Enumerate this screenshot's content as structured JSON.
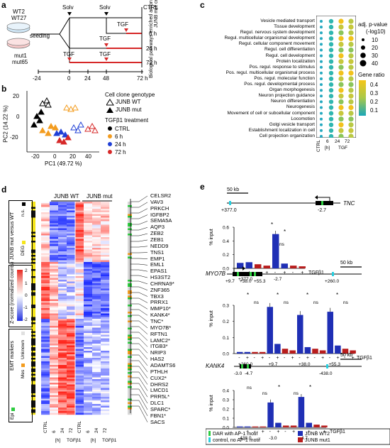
{
  "panels": {
    "a": "a",
    "b": "b",
    "c": "c",
    "d": "d",
    "e": "e"
  },
  "a": {
    "wt_labels": [
      "WT2",
      "WT27"
    ],
    "mut_labels": [
      "mut1",
      "mut65"
    ],
    "seeding": "seeding",
    "solv": "Solv",
    "tgf": "TGF",
    "conditions": [
      "CTRL",
      "6 h",
      "24 h",
      "72 h"
    ],
    "axis_ticks": [
      "-24",
      "0",
      "24",
      "48",
      "72 h"
    ]
  },
  "b": {
    "xlabel": "PC1 (49.72 %)",
    "ylabel": "PC2 (14.22 %)",
    "xticks": [
      "-20",
      "0",
      "20",
      "40"
    ],
    "yticks": [
      "20",
      "0",
      "-20"
    ],
    "legend_title1": "Cell clone genotype",
    "legend_wt": "JUNB WT",
    "legend_mut": "JUNB mut",
    "legend_title2": "TGFβ1 treatment",
    "treatments": [
      "CTRL",
      "6 h",
      "24 h",
      "72 h"
    ],
    "treatment_colors": [
      "#000000",
      "#f39c1f",
      "#1f3fd6",
      "#d62828"
    ]
  },
  "c": {
    "ylabel": "Biological pathways enriched among genes downregulated in JUNB mut cells",
    "pathways": [
      "Vesicle mediated transport",
      "Tissue development",
      "Regul. nervous system development",
      "Regul. multicellular organismal development",
      "Regul. cellular component movement",
      "Regul. cell differentiation",
      "Regul. cell development",
      "Protein localization",
      "Pos. regul. response to stimulus",
      "Pos. regul. multicellular organismal process",
      "Pos. regul. molecular function",
      "Pos. regul. developmental process",
      "Organ morphogenesis",
      "Neuron projection guidance",
      "Neuron differentiation",
      "Neurogenesis",
      "Movement of cell or subcellular component",
      "Locomotion",
      "Golgi vesicle transport",
      "Establishment localization in cell",
      "Cell projection organization"
    ],
    "columns": [
      "CTRL",
      "6",
      "24",
      "72"
    ],
    "xfooter_h": "[h]",
    "xfooter_tgf": "TGF",
    "size_title": "adj. p-value",
    "size_title2": "(-log10)",
    "size_legend": [
      "10",
      "20",
      "30",
      "40"
    ],
    "color_title": "Gene ratio",
    "color_legend": [
      "0.4",
      "0.3",
      "0.2",
      "0.1"
    ]
  },
  "d": {
    "header_wt": "JUNB WT",
    "header_mut": "JUNB mut",
    "side1_title": "JUNB mut versus WT",
    "side1_ns": "n.s.",
    "side1_deg": "DEG",
    "side2_title": "Z-score (normalized counts)",
    "side2_ticks": [
      "2",
      "1",
      "0",
      "-1",
      "-2"
    ],
    "side3_title": "EMT markers",
    "side3_mes": "Mes",
    "side3_unknown": "Unknown",
    "side3_epi": "Epi",
    "xlabels": [
      "CTRL",
      "6",
      "24",
      "72",
      "CTRL",
      "6",
      "24",
      "72"
    ],
    "xfooter_h": "[h]",
    "xfooter_tgf": "TGFβ1",
    "genes": [
      "CELSR2",
      "VAV3",
      "PRKCH",
      "IGFBP2",
      "SEMA5A",
      "AQP3",
      "ZEB2",
      "ZEB1",
      "NEDD9",
      "TNS1",
      "EMP1",
      "EML1",
      "EPAS1",
      "HS3ST2",
      "CHRNA9*",
      "ZNF365",
      "TBX3",
      "PRRX1",
      "MMP10*",
      "KANK4*",
      "TNC*",
      "MYO7B*",
      "RFTN1",
      "LAMC2*",
      "ITGB3*",
      "NRIP3",
      "HAS2",
      "ADAMTS6",
      "PTHLH",
      "CUX2*",
      "DHRS2",
      "LMCD1",
      "PRR5L*",
      "DLC1",
      "SPARC*",
      "FBN1*",
      "SACS"
    ]
  },
  "e": {
    "scale": "50 kb",
    "ylabel": "% input",
    "tgf_label": "TGFβ1",
    "tnc": {
      "gene": "TNC",
      "positions": [
        "+377.0",
        "-2.7"
      ],
      "yticks": [
        "0.6",
        "0.4",
        "0.2",
        "0.0"
      ],
      "sig": [
        "*",
        "*",
        "ns"
      ],
      "values": [
        0.08,
        0.09,
        0.06,
        0.04,
        0.5,
        0.07,
        0.04,
        0.03
      ]
    },
    "myo7b": {
      "gene": "MYO7B",
      "positions": [
        "+260.0",
        "+9.7",
        "+38.0",
        "+55.3"
      ],
      "ticks_map": [
        "+9.7",
        "+38.0",
        "+55.3",
        "+260.0"
      ],
      "yticks": [
        "0.3",
        "0.2",
        "0.1",
        "0.0"
      ],
      "sig": [
        "*",
        "ns",
        "*",
        "ns",
        "*",
        "ns",
        "*",
        "ns"
      ],
      "values": [
        0.01,
        0.01,
        0.01,
        0.01,
        0.29,
        0.06,
        0.03,
        0.02,
        0.24,
        0.04,
        0.03,
        0.02,
        0.26,
        0.05,
        0.03,
        0.02
      ]
    },
    "kank4": {
      "gene": "KANK4",
      "positions": [
        "-438.0",
        "-3.0",
        "-4.7"
      ],
      "ticks_map": [
        "-3.0",
        "-4.7",
        "-438.0"
      ],
      "yticks": [
        "0.4",
        "0.3",
        "0.2",
        "0.1",
        "0.0"
      ],
      "sig": [
        "ns",
        "ns",
        "*",
        "ns",
        "*"
      ],
      "values": [
        0.01,
        0.01,
        0.01,
        0.01,
        0.27,
        0.05,
        0.02,
        0.02,
        0.33,
        0.05,
        0.03,
        0.02
      ]
    },
    "legend": {
      "dar": "DAR with AP-1 motif",
      "control": "control, no AP-1 motif",
      "wt2": "JUNB WT2",
      "mut1": "JUNB mut1"
    },
    "colors": {
      "wt": "#1f2fb5",
      "mut": "#b81c1c",
      "dar": "#2ecc40",
      "ctrl": "#27d0e0"
    }
  }
}
